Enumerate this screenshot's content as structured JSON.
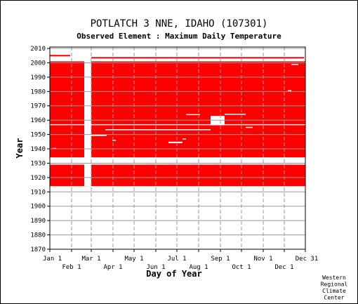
{
  "chart_data": {
    "type": "heatmap",
    "title": "POTLATCH 3 NNE, IDAHO   (107301)",
    "subtitle": "Observed Element : Maximum Daily Temperature",
    "xlabel": "Day of Year",
    "ylabel": "Year",
    "credit": [
      "Western",
      "Regional",
      "Climate",
      "Center"
    ],
    "x_ticks_top_row": [
      "Jan 1",
      "Mar 1",
      "May 1",
      "Jul 1",
      "Sep 1",
      "Nov 1",
      "Dec 31"
    ],
    "x_ticks_bottom_row": [
      "Feb 1",
      "Apr 1",
      "Jun 1",
      "Aug 1",
      "Oct 1",
      "Dec 1"
    ],
    "month_start_days": [
      1,
      32,
      60,
      91,
      121,
      152,
      182,
      213,
      244,
      274,
      305,
      335,
      365
    ],
    "y_ticks": [
      2010,
      2000,
      1990,
      1980,
      1970,
      1960,
      1950,
      1940,
      1930,
      1920,
      1910,
      1900,
      1890,
      1880,
      1870
    ],
    "xlim": [
      1,
      365
    ],
    "ylim": [
      1870,
      2011
    ],
    "grid": true,
    "data_color": "#ff0000",
    "data_blocks": [
      {
        "day_start": 1,
        "day_end": 365,
        "year_start": 1914,
        "year_end": 1929
      },
      {
        "day_start": 1,
        "day_end": 365,
        "year_start": 1934,
        "year_end": 2001
      },
      {
        "day_start": 1,
        "day_end": 30,
        "year_start": 2004.5,
        "year_end": 2005.5
      },
      {
        "day_start": 60,
        "day_end": 363,
        "year_start": 2003,
        "year_end": 2004
      }
    ],
    "missing_blocks": [
      {
        "day_start": 50,
        "day_end": 60,
        "year_start": 1914,
        "year_end": 2001
      },
      {
        "day_start": 1,
        "day_end": 365,
        "year_start": 1929,
        "year_end": 1930.5
      },
      {
        "day_start": 1,
        "day_end": 225,
        "year_start": 1932,
        "year_end": 1934
      },
      {
        "day_start": 225,
        "day_end": 250,
        "year_start": 1930.5,
        "year_end": 1934
      },
      {
        "day_start": 250,
        "day_end": 365,
        "year_start": 1933,
        "year_end": 1934
      },
      {
        "day_start": 1,
        "day_end": 365,
        "year_start": 1956.5,
        "year_end": 1957.2
      },
      {
        "day_start": 230,
        "day_end": 250,
        "year_start": 1956.5,
        "year_end": 1963
      },
      {
        "day_start": 60,
        "day_end": 82,
        "year_start": 1949,
        "year_end": 1950
      },
      {
        "day_start": 80,
        "day_end": 230,
        "year_start": 1953,
        "year_end": 1953.7
      },
      {
        "day_start": 170,
        "day_end": 190,
        "year_start": 1944,
        "year_end": 1945
      },
      {
        "day_start": 195,
        "day_end": 215,
        "year_start": 1963.5,
        "year_end": 1964.2
      },
      {
        "day_start": 250,
        "day_end": 280,
        "year_start": 1963.8,
        "year_end": 1964.5
      },
      {
        "day_start": 280,
        "day_end": 290,
        "year_start": 1954.6,
        "year_end": 1955.3
      },
      {
        "day_start": 5,
        "day_end": 10,
        "year_start": 1939.8,
        "year_end": 1940.6
      },
      {
        "day_start": 340,
        "day_end": 345,
        "year_start": 1980.2,
        "year_end": 1980.9
      },
      {
        "day_start": 345,
        "day_end": 355,
        "year_start": 1998.5,
        "year_end": 1999.2
      },
      {
        "day_start": 190,
        "day_end": 195,
        "year_start": 1946.5,
        "year_end": 1947.2
      },
      {
        "day_start": 90,
        "day_end": 95,
        "year_start": 1945.5,
        "year_end": 1946.2
      }
    ]
  }
}
